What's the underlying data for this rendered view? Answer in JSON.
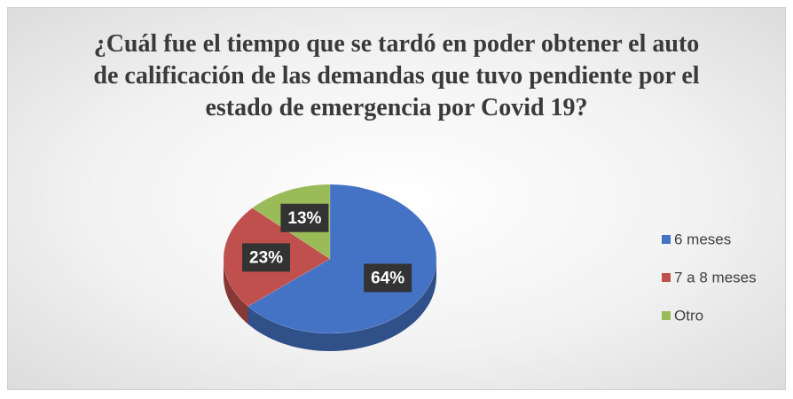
{
  "chart_data": {
    "type": "pie",
    "title": "¿Cuál fue el tiempo que se tardó en poder obtener el auto de calificación de las demandas que tuvo pendiente por el estado de emergencia por Covid 19?",
    "categories": [
      "6 meses",
      "7 a 8 meses",
      "Otro"
    ],
    "values": [
      64,
      23,
      13
    ],
    "value_labels": [
      "64%",
      "23%",
      "13%"
    ],
    "colors": [
      "#4472c4",
      "#c0504d",
      "#9bbb59"
    ],
    "legend": "right"
  }
}
